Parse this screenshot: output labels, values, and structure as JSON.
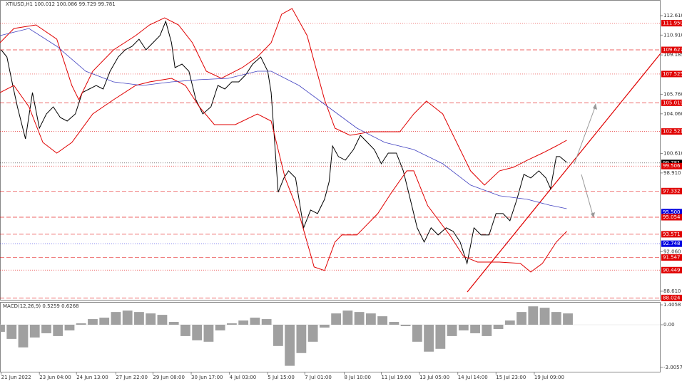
{
  "chart_data": [
    {
      "type": "line",
      "title": "XTIUSD,H1  100.012 100.086 99.729 99.781",
      "xlim": [
        0,
        570
      ],
      "ylim": [
        87.8,
        113.97
      ],
      "xticks": [
        {
          "value": 1,
          "label": "21 Jun 2022"
        },
        {
          "value": 34,
          "label": "23 Jun 04:00"
        },
        {
          "value": 66,
          "label": "24 Jun 13:00"
        },
        {
          "value": 100,
          "label": "27 Jun 22:00"
        },
        {
          "value": 132,
          "label": "29 Jun 08:00"
        },
        {
          "value": 165,
          "label": "30 Jun 17:00"
        },
        {
          "value": 198,
          "label": "4 Jul 03:00"
        },
        {
          "value": 231,
          "label": "5 Jul 15:00"
        },
        {
          "value": 263,
          "label": "7 Jul 01:00"
        },
        {
          "value": 297,
          "label": "8 Jul 10:00"
        },
        {
          "value": 329,
          "label": "11 Jul 19:00"
        },
        {
          "value": 362,
          "label": "13 Jul 05:00"
        },
        {
          "value": 395,
          "label": "14 Jul 14:00"
        },
        {
          "value": 428,
          "label": "15 Jul 23:00"
        },
        {
          "value": 461,
          "label": "19 Jul 09:00"
        }
      ],
      "yticks": [
        {
          "value": 112.61,
          "label": "112.610"
        },
        {
          "value": 110.91,
          "label": "110.910"
        },
        {
          "value": 109.185,
          "label": "109.185"
        },
        {
          "value": 105.76,
          "label": "105.760"
        },
        {
          "value": 104.06,
          "label": "104.060"
        },
        {
          "value": 100.61,
          "label": "100.610"
        },
        {
          "value": 98.91,
          "label": "98.910"
        },
        {
          "value": 92.06,
          "label": "92.060"
        },
        {
          "value": 88.61,
          "label": "88.610"
        }
      ],
      "series": [
        {
          "color": "#000000",
          "width": 1,
          "x": [
            1,
            6,
            11,
            15,
            22,
            28,
            34,
            40,
            46,
            52,
            58,
            65,
            71,
            77,
            83,
            89,
            95,
            102,
            108,
            114,
            120,
            126,
            132,
            138,
            143,
            148,
            151,
            157,
            163,
            169,
            175,
            182,
            188,
            194,
            200,
            206,
            212,
            218,
            225,
            231,
            234,
            237,
            240,
            245,
            249,
            255,
            262,
            268,
            274,
            280,
            284,
            287,
            292,
            298,
            305,
            311,
            317,
            323,
            329,
            335,
            342,
            348,
            354,
            360,
            366,
            372,
            378,
            385,
            391,
            397,
            403,
            406,
            409,
            415,
            422,
            428,
            434,
            440,
            446,
            452,
            458,
            465,
            471,
            475,
            480,
            483,
            489
          ],
          "values": [
            109.63,
            109.01,
            106.53,
            104.67,
            101.88,
            105.91,
            102.81,
            104.05,
            104.67,
            103.74,
            103.43,
            104.05,
            105.91,
            106.22,
            106.53,
            106.22,
            107.77,
            109.01,
            109.63,
            109.94,
            110.56,
            109.63,
            110.25,
            110.87,
            112.11,
            110.25,
            108.08,
            108.39,
            107.77,
            105.29,
            104.05,
            104.67,
            106.53,
            106.22,
            106.84,
            106.84,
            107.46,
            108.39,
            109.01,
            107.77,
            105.91,
            101.57,
            97.23,
            98.47,
            99.09,
            98.47,
            94.13,
            95.68,
            95.37,
            96.61,
            98.16,
            101.26,
            100.33,
            100.02,
            100.95,
            102.19,
            101.57,
            100.95,
            99.71,
            100.64,
            100.64,
            99.09,
            96.61,
            94.13,
            92.89,
            94.13,
            93.51,
            94.13,
            93.82,
            92.89,
            91.03,
            92.58,
            94.13,
            93.51,
            93.51,
            95.37,
            95.37,
            94.75,
            96.61,
            98.78,
            98.47,
            99.09,
            98.47,
            97.54,
            100.33,
            100.33,
            99.83
          ]
        },
        {
          "color": "#e00000",
          "width": 1,
          "x": [
            0,
            12,
            31,
            49,
            62,
            68,
            80,
            98,
            117,
            129,
            142,
            154,
            166,
            178,
            191,
            209,
            222,
            234,
            243,
            252,
            265,
            280,
            289,
            302,
            320,
            345,
            357,
            368,
            382,
            394,
            406,
            418,
            431,
            443,
            455,
            468,
            480,
            489
          ],
          "values": [
            110.25,
            111.49,
            111.8,
            110.56,
            106.53,
            105.29,
            107.77,
            109.63,
            110.87,
            111.8,
            112.42,
            111.8,
            110.25,
            107.77,
            107.15,
            108.08,
            109.01,
            110.25,
            112.73,
            113.23,
            110.87,
            105.29,
            102.81,
            102.19,
            102.5,
            102.5,
            104.05,
            105.17,
            104.05,
            101.57,
            99.09,
            97.85,
            99.09,
            99.4,
            100.02,
            100.64,
            101.26,
            101.76
          ]
        },
        {
          "color": "#e00000",
          "width": 1,
          "x": [
            0,
            12,
            25,
            37,
            49,
            62,
            80,
            98,
            117,
            129,
            148,
            160,
            172,
            185,
            203,
            222,
            234,
            246,
            258,
            271,
            280,
            289,
            295,
            308,
            326,
            338,
            351,
            357,
            369,
            388,
            400,
            412,
            431,
            449,
            458,
            468,
            480,
            489
          ],
          "values": [
            105.91,
            106.53,
            104.67,
            101.57,
            100.64,
            101.57,
            104.05,
            105.29,
            106.53,
            106.84,
            107.15,
            106.53,
            104.67,
            103.12,
            103.12,
            104.05,
            103.43,
            98.47,
            95.37,
            90.72,
            90.41,
            92.89,
            93.51,
            93.51,
            95.37,
            97.23,
            99.09,
            99.09,
            96.06,
            93.51,
            91.65,
            91.15,
            91.15,
            91.03,
            90.28,
            91.03,
            92.89,
            93.82
          ]
        },
        {
          "color": "#4040c0",
          "width": 0.8,
          "x": [
            0,
            25,
            49,
            74,
            98,
            123,
            148,
            172,
            197,
            222,
            234,
            258,
            283,
            308,
            332,
            357,
            382,
            406,
            431,
            455,
            474,
            489
          ],
          "values": [
            110.87,
            111.49,
            109.94,
            107.77,
            106.84,
            106.53,
            106.84,
            107.03,
            107.15,
            107.77,
            107.77,
            106.53,
            104.67,
            102.81,
            101.57,
            100.95,
            99.71,
            97.85,
            96.92,
            96.61,
            96.11,
            95.8
          ]
        }
      ],
      "levels": [
        {
          "value": 111.95,
          "label": "111.950",
          "color": "#e00000",
          "style": "dotted"
        },
        {
          "value": 109.627,
          "label": "109.627",
          "color": "#e00000",
          "style": "dashed"
        },
        {
          "value": 107.525,
          "label": "107.525",
          "color": "#e00000",
          "style": "dotted"
        },
        {
          "value": 105.019,
          "label": "105.019",
          "color": "#e00000",
          "style": "dashed"
        },
        {
          "value": 102.521,
          "label": "102.521",
          "color": "#e00000",
          "style": "dotted"
        },
        {
          "value": 99.781,
          "label": "99.781",
          "color": "#000000",
          "style": "dotted"
        },
        {
          "value": 99.506,
          "label": "99.506",
          "color": "#e00000",
          "style": "dotted"
        },
        {
          "value": 97.332,
          "label": "97.332",
          "color": "#e00000",
          "style": "dashed"
        },
        {
          "value": 95.5,
          "label": "95.500",
          "color": "#0000e0"
        },
        {
          "value": 95.054,
          "label": "95.054",
          "color": "#e00000",
          "style": "dashed"
        },
        {
          "value": 93.571,
          "label": "93.571",
          "color": "#e00000",
          "style": "dashed"
        },
        {
          "value": 92.748,
          "label": "92.748",
          "color": "#0000e0",
          "style": "dotted"
        },
        {
          "value": 91.547,
          "label": "91.547",
          "color": "#e00000",
          "style": "dashed"
        },
        {
          "value": 90.449,
          "label": "90.449",
          "color": "#e00000",
          "style": "dotted"
        },
        {
          "value": 88.024,
          "label": "88.024",
          "color": "#e00000",
          "style": "dashed"
        }
      ]
    },
    {
      "type": "bar",
      "title": "MACD(12,26,9) 0.5259 0.6268",
      "xlim": [
        0,
        570
      ],
      "ylim": [
        -3.32,
        1.56
      ],
      "yticks": [
        {
          "value": 1.4058,
          "label": "1.4058"
        },
        {
          "value": 0,
          "label": "0.00"
        },
        {
          "value": -3.0057,
          "label": "-3.0057"
        }
      ],
      "color": "#a0a0a0",
      "x": [
        0,
        10,
        20,
        30,
        40,
        50,
        60,
        70,
        80,
        90,
        100,
        110,
        120,
        130,
        140,
        150,
        160,
        170,
        180,
        190,
        200,
        210,
        220,
        230,
        240,
        250,
        260,
        270,
        280,
        290,
        300,
        310,
        320,
        330,
        340,
        350,
        360,
        370,
        380,
        390,
        400,
        410,
        420,
        430,
        440,
        450,
        460,
        470,
        480,
        490
      ],
      "values": [
        -0.5,
        -1.0,
        -1.6,
        -0.9,
        -0.6,
        -0.8,
        -0.4,
        0.1,
        0.4,
        0.5,
        0.9,
        1.0,
        0.9,
        0.8,
        0.7,
        0.2,
        -0.8,
        -1.1,
        -1.2,
        -0.4,
        0.1,
        0.3,
        0.5,
        0.4,
        -1.5,
        -2.9,
        -2.0,
        -1.2,
        -0.2,
        0.8,
        1.0,
        0.9,
        0.8,
        0.6,
        0.2,
        -0.1,
        -1.2,
        -1.9,
        -1.7,
        -0.8,
        -0.4,
        -0.6,
        -0.8,
        -0.3,
        0.3,
        0.9,
        1.3,
        1.2,
        0.9,
        0.8
      ]
    }
  ]
}
